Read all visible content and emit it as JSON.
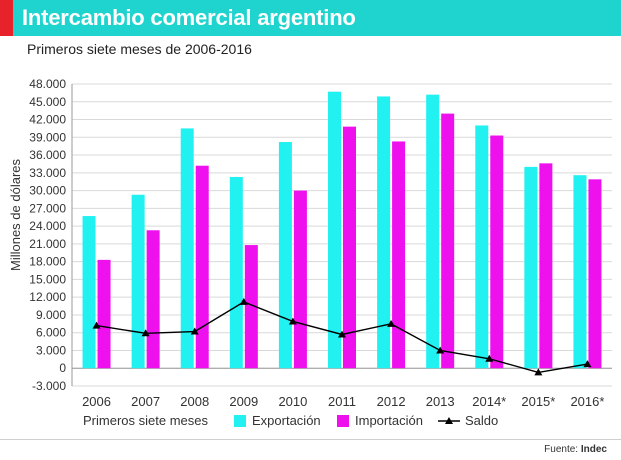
{
  "header": {
    "title": "Intercambio comercial argentino",
    "subtitle": "Primeros siete meses de 2006-2016"
  },
  "colors": {
    "accent": "#1fd3cf",
    "marker": "#e8222b",
    "exportacion": "#22f1f1",
    "importacion": "#ee11ee",
    "saldo": "#000000",
    "grid": "#d9d9d9"
  },
  "chart_data": {
    "type": "bar",
    "ylabel": "Millones de dólares",
    "ylim": [
      -3000,
      48000
    ],
    "yticks": [
      "-3.000",
      "0",
      "3.000",
      "6.000",
      "9.000",
      "12.000",
      "15.000",
      "18.000",
      "21.000",
      "24.000",
      "27.000",
      "30.000",
      "33.000",
      "36.000",
      "39.000",
      "42.000",
      "45.000",
      "48.000"
    ],
    "ytick_values": [
      -3000,
      0,
      3000,
      6000,
      9000,
      12000,
      15000,
      18000,
      21000,
      24000,
      27000,
      30000,
      33000,
      36000,
      39000,
      42000,
      45000,
      48000
    ],
    "categories": [
      "2006",
      "2007",
      "2008",
      "2009",
      "2010",
      "2011",
      "2012",
      "2013",
      "2014*",
      "2015*",
      "2016*"
    ],
    "grid": true,
    "series": [
      {
        "name": "Exportación",
        "kind": "bar",
        "values": [
          25700,
          29300,
          40500,
          32300,
          38200,
          46700,
          45900,
          46200,
          41000,
          34000,
          32600
        ]
      },
      {
        "name": "Importación",
        "kind": "bar",
        "values": [
          18300,
          23300,
          34200,
          20800,
          30000,
          40800,
          38300,
          43000,
          39300,
          34600,
          31900
        ]
      },
      {
        "name": "Saldo",
        "kind": "line",
        "values": [
          7200,
          5900,
          6200,
          11200,
          7900,
          5700,
          7500,
          3000,
          1600,
          -700,
          700
        ]
      }
    ]
  },
  "legend": {
    "period_label": "Primeros siete meses",
    "exportacion": "Exportación",
    "importacion": "Importación",
    "saldo": "Saldo"
  },
  "footer": {
    "source_prefix": "Fuente: ",
    "source_name": "Indec"
  }
}
